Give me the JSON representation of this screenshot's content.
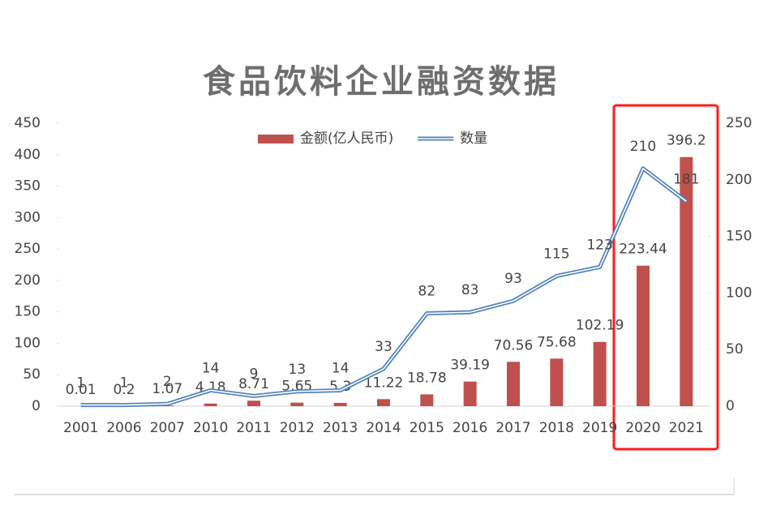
{
  "chart_data": {
    "type": "bar_line",
    "title": "食品饮料企业融资数据",
    "categories": [
      "2001",
      "2006",
      "2007",
      "2010",
      "2011",
      "2012",
      "2013",
      "2014",
      "2015",
      "2016",
      "2017",
      "2018",
      "2019",
      "2020",
      "2021"
    ],
    "series": [
      {
        "name": "金额(亿人民币)",
        "color": "#c0504d",
        "type": "bar",
        "values": [
          0.01,
          0.2,
          1.07,
          4.18,
          8.71,
          5.65,
          5.3,
          11.22,
          18.78,
          39.19,
          70.56,
          75.68,
          102.19,
          223.44,
          396.2
        ]
      },
      {
        "name": "数量",
        "color": "#4f81bd",
        "type": "line",
        "axis": "y2",
        "values": [
          1,
          1,
          2,
          14,
          9,
          13,
          14,
          33,
          82,
          83,
          93,
          115,
          123,
          210,
          181
        ]
      }
    ],
    "ylim": [
      0,
      450
    ],
    "yticks": [
      0,
      50,
      100,
      150,
      200,
      250,
      300,
      350,
      400,
      450
    ],
    "y2lim": [
      0,
      250
    ],
    "y2ticks": [
      0,
      50,
      100,
      150,
      200,
      250
    ],
    "legend": "top"
  }
}
